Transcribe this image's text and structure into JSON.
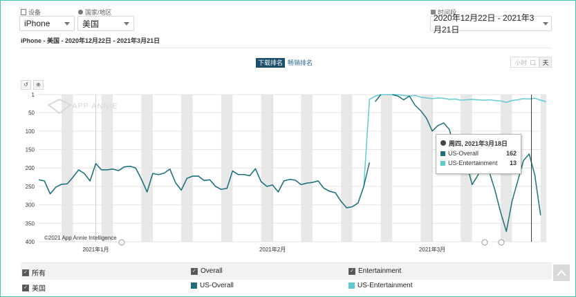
{
  "filters": {
    "device_label": "设备",
    "device_value": "iPhone",
    "country_label": "国家/地区",
    "country_value": "美国",
    "date_label": "时间段",
    "date_value": "2020年12月22日 - 2021年3月21日"
  },
  "subtitle": "iPhone - 美国 - 2020年12月22日 - 2021年3月21日",
  "tabs": {
    "active": "下载排名",
    "other": "畅销排名"
  },
  "granularity": {
    "hour": "小时",
    "day": "天"
  },
  "toolbar": {
    "reset_icon": "undo-icon",
    "zoom_icon": "zoom-icon"
  },
  "watermark": "APP ANNIE",
  "copyright": "©2021 App Annie Intelligence",
  "tooltip": {
    "date": "周四, 2021年3月18日",
    "rows": [
      {
        "name": "US-Overall",
        "value": "162",
        "color": "#1f6e7a"
      },
      {
        "name": "US-Entertainment",
        "value": "13",
        "color": "#5fcbd1"
      }
    ]
  },
  "legend": {
    "all": "所有",
    "country": "美国",
    "group1": "Overall",
    "group2": "Entertainment",
    "series1": "US-Overall",
    "series2": "US-Entertainment"
  },
  "chart_data": {
    "type": "line",
    "ylabel": "",
    "xlabel": "",
    "y_reversed": true,
    "ylim": [
      1,
      400
    ],
    "y_ticks": [
      "1",
      "50",
      "100",
      "150",
      "200",
      "250",
      "300",
      "350",
      "400"
    ],
    "x_ticks": [
      "2021年1月",
      "2021年2月",
      "2021年3月"
    ],
    "x_range": [
      "2020-12-22",
      "2021-03-21"
    ],
    "weekend_shading": true,
    "series": [
      {
        "name": "US-Overall",
        "color": "#1f6e7a",
        "points": [
          [
            "2020-12-22",
            232
          ],
          [
            "2020-12-23",
            235
          ],
          [
            "2020-12-24",
            270
          ],
          [
            "2020-12-25",
            252
          ],
          [
            "2020-12-26",
            244
          ],
          [
            "2020-12-27",
            243
          ],
          [
            "2020-12-28",
            225
          ],
          [
            "2020-12-29",
            205
          ],
          [
            "2020-12-30",
            215
          ],
          [
            "2020-12-31",
            235
          ],
          [
            "2021-01-01",
            188
          ],
          [
            "2021-01-02",
            205
          ],
          [
            "2021-01-03",
            205
          ],
          [
            "2021-01-04",
            203
          ],
          [
            "2021-01-05",
            207
          ],
          [
            "2021-01-06",
            197
          ],
          [
            "2021-01-07",
            195
          ],
          [
            "2021-01-08",
            200
          ],
          [
            "2021-01-09",
            230
          ],
          [
            "2021-01-10",
            265
          ],
          [
            "2021-01-11",
            215
          ],
          [
            "2021-01-12",
            218
          ],
          [
            "2021-01-13",
            214
          ],
          [
            "2021-01-14",
            203
          ],
          [
            "2021-01-15",
            240
          ],
          [
            "2021-01-16",
            260
          ],
          [
            "2021-01-17",
            228
          ],
          [
            "2021-01-18",
            222
          ],
          [
            "2021-01-19",
            222
          ],
          [
            "2021-01-20",
            234
          ],
          [
            "2021-01-21",
            232
          ],
          [
            "2021-01-22",
            250
          ],
          [
            "2021-01-23",
            258
          ],
          [
            "2021-01-24",
            255
          ],
          [
            "2021-01-25",
            208
          ],
          [
            "2021-01-26",
            218
          ],
          [
            "2021-01-27",
            218
          ],
          [
            "2021-01-28",
            221
          ],
          [
            "2021-01-29",
            202
          ],
          [
            "2021-01-30",
            237
          ],
          [
            "2021-01-31",
            250
          ],
          [
            "2021-02-01",
            246
          ],
          [
            "2021-02-02",
            265
          ],
          [
            "2021-02-03",
            235
          ],
          [
            "2021-02-04",
            231
          ],
          [
            "2021-02-05",
            233
          ],
          [
            "2021-02-06",
            245
          ],
          [
            "2021-02-07",
            241
          ],
          [
            "2021-02-08",
            239
          ],
          [
            "2021-02-09",
            235
          ],
          [
            "2021-02-10",
            255
          ],
          [
            "2021-02-11",
            263
          ],
          [
            "2021-02-12",
            267
          ],
          [
            "2021-02-13",
            290
          ],
          [
            "2021-02-14",
            308
          ],
          [
            "2021-02-15",
            305
          ],
          [
            "2021-02-16",
            295
          ],
          [
            "2021-02-17",
            250
          ],
          [
            "2021-02-18",
            185
          ],
          null,
          [
            "2021-02-19",
            20
          ],
          [
            "2021-02-20",
            1
          ],
          null,
          [
            "2021-02-22",
            1
          ],
          [
            "2021-02-23",
            5
          ],
          [
            "2021-02-24",
            15
          ],
          [
            "2021-02-25",
            5
          ],
          [
            "2021-02-26",
            30
          ],
          [
            "2021-02-27",
            45
          ],
          [
            "2021-02-28",
            65
          ],
          [
            "2021-03-01",
            100
          ],
          [
            "2021-03-02",
            85
          ],
          [
            "2021-03-03",
            78
          ],
          [
            "2021-03-04",
            95
          ],
          [
            "2021-03-05",
            150
          ],
          [
            "2021-03-06",
            162
          ],
          [
            "2021-03-07",
            185
          ],
          [
            "2021-03-08",
            245
          ],
          [
            "2021-03-09",
            220
          ],
          [
            "2021-03-10",
            195
          ],
          [
            "2021-03-11",
            210
          ],
          [
            "2021-03-12",
            260
          ],
          [
            "2021-03-13",
            320
          ],
          [
            "2021-03-14",
            372
          ],
          [
            "2021-03-15",
            290
          ],
          [
            "2021-03-16",
            235
          ],
          [
            "2021-03-17",
            180
          ],
          [
            "2021-03-18",
            162
          ],
          [
            "2021-03-19",
            220
          ],
          [
            "2021-03-20",
            328
          ]
        ]
      },
      {
        "name": "US-Entertainment",
        "color": "#5fcbd1",
        "points": [
          [
            "2020-12-22",
            232
          ],
          [
            "2020-12-23",
            235
          ],
          [
            "2020-12-24",
            270
          ],
          [
            "2020-12-25",
            252
          ],
          [
            "2020-12-26",
            244
          ],
          [
            "2020-12-27",
            243
          ],
          [
            "2020-12-28",
            225
          ],
          [
            "2020-12-29",
            205
          ],
          [
            "2020-12-30",
            215
          ],
          [
            "2020-12-31",
            235
          ],
          [
            "2021-01-01",
            188
          ],
          [
            "2021-01-02",
            205
          ],
          [
            "2021-01-03",
            205
          ],
          [
            "2021-01-04",
            203
          ],
          [
            "2021-01-05",
            207
          ],
          [
            "2021-01-06",
            197
          ],
          [
            "2021-01-07",
            195
          ],
          [
            "2021-01-08",
            200
          ],
          [
            "2021-01-09",
            230
          ],
          [
            "2021-01-10",
            265
          ],
          [
            "2021-01-11",
            215
          ],
          [
            "2021-01-12",
            218
          ],
          [
            "2021-01-13",
            214
          ],
          [
            "2021-01-14",
            203
          ],
          [
            "2021-01-15",
            240
          ],
          [
            "2021-01-16",
            260
          ],
          [
            "2021-01-17",
            228
          ],
          [
            "2021-01-18",
            222
          ],
          [
            "2021-01-19",
            222
          ],
          [
            "2021-01-20",
            234
          ],
          [
            "2021-01-21",
            232
          ],
          [
            "2021-01-22",
            250
          ],
          [
            "2021-01-23",
            258
          ],
          [
            "2021-01-24",
            255
          ],
          [
            "2021-01-25",
            208
          ],
          [
            "2021-01-26",
            218
          ],
          [
            "2021-01-27",
            218
          ],
          [
            "2021-01-28",
            221
          ],
          [
            "2021-01-29",
            202
          ],
          [
            "2021-01-30",
            237
          ],
          [
            "2021-01-31",
            250
          ],
          [
            "2021-02-01",
            246
          ],
          [
            "2021-02-02",
            265
          ],
          [
            "2021-02-03",
            235
          ],
          [
            "2021-02-04",
            231
          ],
          [
            "2021-02-05",
            233
          ],
          [
            "2021-02-06",
            245
          ],
          [
            "2021-02-07",
            241
          ],
          [
            "2021-02-08",
            239
          ],
          [
            "2021-02-09",
            235
          ],
          [
            "2021-02-10",
            255
          ],
          [
            "2021-02-11",
            263
          ],
          [
            "2021-02-12",
            267
          ],
          [
            "2021-02-13",
            290
          ],
          [
            "2021-02-14",
            308
          ],
          [
            "2021-02-15",
            305
          ],
          [
            "2021-02-16",
            295
          ],
          [
            "2021-02-17",
            250
          ],
          [
            "2021-02-18",
            14
          ],
          [
            "2021-02-19",
            5
          ],
          [
            "2021-02-20",
            1
          ],
          [
            "2021-02-21",
            1
          ],
          [
            "2021-02-22",
            1
          ],
          [
            "2021-02-23",
            1
          ],
          [
            "2021-02-24",
            3
          ],
          [
            "2021-02-25",
            5
          ],
          [
            "2021-02-26",
            3
          ],
          [
            "2021-02-27",
            8
          ],
          [
            "2021-02-28",
            10
          ],
          [
            "2021-03-01",
            12
          ],
          [
            "2021-03-02",
            10
          ],
          [
            "2021-03-03",
            11
          ],
          [
            "2021-03-04",
            14
          ],
          [
            "2021-03-05",
            13
          ],
          [
            "2021-03-06",
            16
          ],
          [
            "2021-03-07",
            15
          ],
          [
            "2021-03-08",
            14
          ],
          [
            "2021-03-09",
            15
          ],
          [
            "2021-03-10",
            16
          ],
          [
            "2021-03-11",
            15
          ],
          [
            "2021-03-12",
            17
          ],
          [
            "2021-03-13",
            18
          ],
          [
            "2021-03-14",
            22
          ],
          [
            "2021-03-15",
            17
          ],
          [
            "2021-03-16",
            15
          ],
          [
            "2021-03-17",
            12
          ],
          [
            "2021-03-18",
            13
          ],
          [
            "2021-03-19",
            11
          ],
          [
            "2021-03-20",
            16
          ],
          [
            "2021-03-21",
            20
          ]
        ]
      }
    ],
    "crosshair_date": "2021-03-18"
  }
}
